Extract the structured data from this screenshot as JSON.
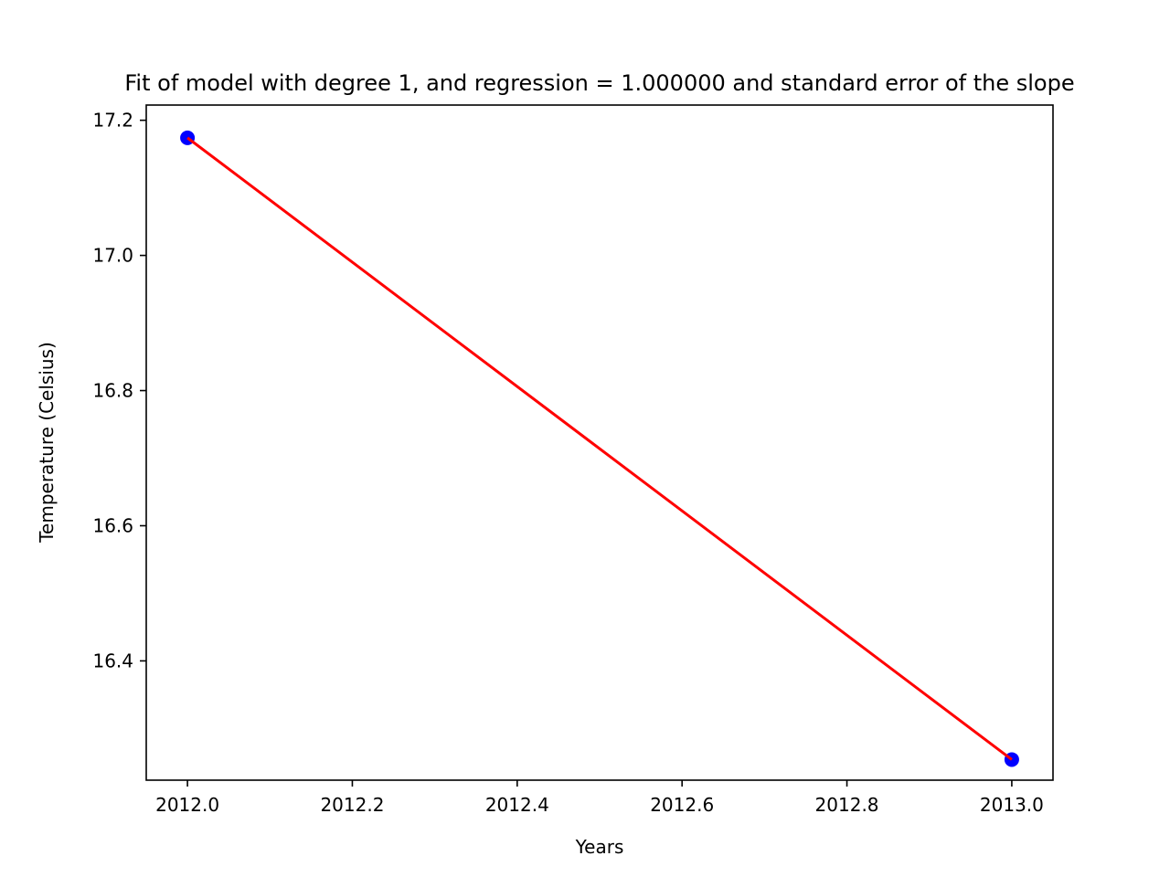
{
  "chart_data": {
    "type": "scatter",
    "title": "Fit of model with degree 1, and regression = 1.000000 and standard error of the slope",
    "xlabel": "Years",
    "ylabel": "Temperature (Celsius)",
    "xlim": [
      2011.95,
      2013.05
    ],
    "ylim": [
      16.2235,
      17.2225
    ],
    "grid": false,
    "x_ticks": [
      {
        "value": 2012.0,
        "label": "2012.0"
      },
      {
        "value": 2012.2,
        "label": "2012.2"
      },
      {
        "value": 2012.4,
        "label": "2012.4"
      },
      {
        "value": 2012.6,
        "label": "2012.6"
      },
      {
        "value": 2012.8,
        "label": "2012.8"
      },
      {
        "value": 2013.0,
        "label": "2013.0"
      }
    ],
    "y_ticks": [
      {
        "value": 16.4,
        "label": "16.4"
      },
      {
        "value": 16.6,
        "label": "16.6"
      },
      {
        "value": 16.8,
        "label": "16.8"
      },
      {
        "value": 17.0,
        "label": "17.0"
      },
      {
        "value": 17.2,
        "label": "17.2"
      }
    ],
    "series": [
      {
        "kind": "points",
        "color": "#0000ff",
        "x": [
          2012.0,
          2013.0
        ],
        "y": [
          17.174,
          16.254
        ]
      },
      {
        "kind": "line",
        "color": "#ff0000",
        "x": [
          2012.0,
          2013.0
        ],
        "y": [
          17.174,
          16.254
        ]
      }
    ]
  }
}
